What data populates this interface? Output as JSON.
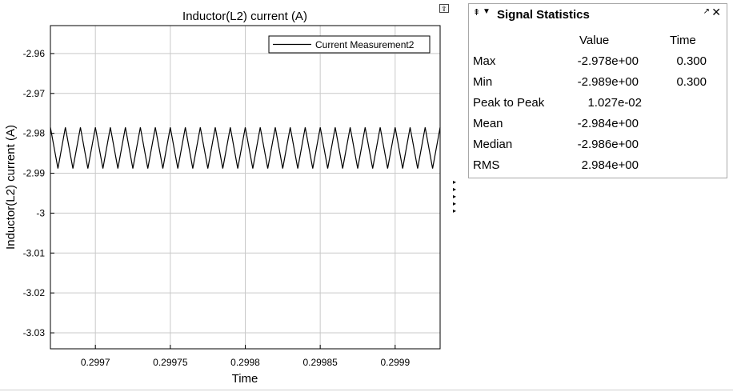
{
  "chart_data": {
    "type": "line",
    "title": "Inductor(L2) current (A)",
    "xlabel": "Time",
    "ylabel": "Inductor(L2) current (A)",
    "xlim": [
      0.29967,
      0.29993
    ],
    "ylim": [
      -3.034,
      -2.953
    ],
    "xticks": [
      0.2997,
      0.29975,
      0.2998,
      0.29985,
      0.2999
    ],
    "xtick_labels": [
      "0.2997",
      "0.29975",
      "0.2998",
      "0.29985",
      "0.2999"
    ],
    "yticks": [
      -2.96,
      -2.97,
      -2.98,
      -2.99,
      -3.0,
      -3.01,
      -3.02,
      -3.03
    ],
    "ytick_labels": [
      "-2.96",
      "-2.97",
      "-2.98",
      "-2.99",
      "-3",
      "-3.01",
      "-3.02",
      "-3.03"
    ],
    "grid": true,
    "legend": {
      "entries": [
        "Current Measurement2"
      ],
      "placement": "top-right"
    },
    "series": [
      {
        "name": "Current Measurement2",
        "waveform": "triangle",
        "max": -2.9785,
        "min": -2.9888,
        "period": 1e-05,
        "first_peak_x": 0.29968,
        "color": "#000000"
      }
    ]
  },
  "toolbar": {
    "undock_glyph": "⇪"
  },
  "arrows": [
    "▸",
    "▸",
    "▸",
    "▸",
    "▸"
  ],
  "stats": {
    "pin_glyph": "⇞",
    "menu_glyph": "▼",
    "title": "Signal Statistics",
    "undock_glyph": "↗",
    "close_glyph": "✕",
    "col_value": "Value",
    "col_time": "Time",
    "rows": [
      {
        "label": "Max",
        "value": "-2.978e+00",
        "time": "0.300"
      },
      {
        "label": "Min",
        "value": "-2.989e+00",
        "time": "0.300"
      },
      {
        "label": "Peak to Peak",
        "value": "1.027e-02",
        "time": ""
      },
      {
        "label": "Mean",
        "value": "-2.984e+00",
        "time": ""
      },
      {
        "label": "Median",
        "value": "-2.986e+00",
        "time": ""
      },
      {
        "label": "RMS",
        "value": "2.984e+00",
        "time": ""
      }
    ]
  }
}
